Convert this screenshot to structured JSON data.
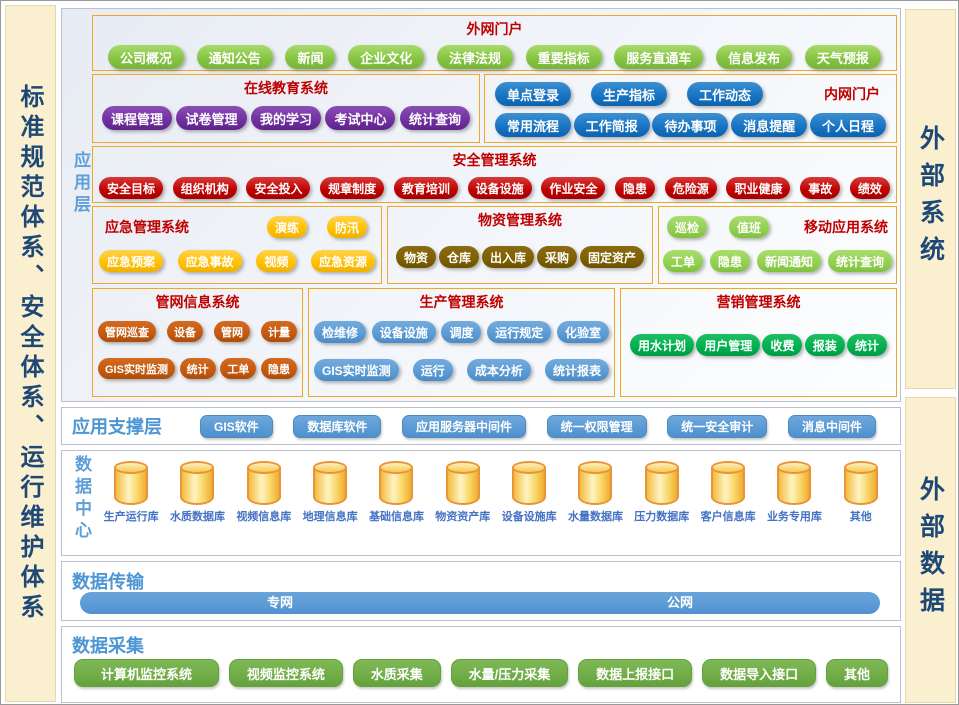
{
  "left_sidebar": {
    "text": "标准规范体系、安全体系、运行维护体系"
  },
  "right_sidebar": {
    "top_text": "外部系统",
    "bottom_text": "外部数据"
  },
  "app_layer": {
    "label": "应用层",
    "external_portal": {
      "title": "外网门户",
      "items": [
        "公司概况",
        "通知公告",
        "新闻",
        "企业文化",
        "法律法规",
        "重要指标",
        "服务直通车",
        "信息发布",
        "天气预报"
      ]
    },
    "online_education": {
      "title": "在线教育系统",
      "items": [
        "课程管理",
        "试卷管理",
        "我的学习",
        "考试中心",
        "统计查询"
      ]
    },
    "intranet_portal": {
      "title": "内网门户",
      "row1": [
        "单点登录",
        "生产指标",
        "工作动态"
      ],
      "row2": [
        "常用流程",
        "工作简报",
        "待办事项",
        "消息提醒",
        "个人日程"
      ]
    },
    "safety_mgmt": {
      "title": "安全管理系统",
      "items": [
        "安全目标",
        "组织机构",
        "安全投入",
        "规章制度",
        "教育培训",
        "设备设施",
        "作业安全",
        "隐患",
        "危险源",
        "职业健康",
        "事故",
        "绩效"
      ]
    },
    "emergency_mgmt": {
      "title": "应急管理系统",
      "row1": [
        "演练",
        "防汛"
      ],
      "row2": [
        "应急预案",
        "应急事故",
        "视频",
        "应急资源"
      ]
    },
    "material_mgmt": {
      "title": "物资管理系统",
      "items": [
        "物资",
        "仓库",
        "出入库",
        "采购",
        "固定资产"
      ]
    },
    "mobile_app": {
      "title": "移动应用系统",
      "row1": [
        "巡检",
        "值班"
      ],
      "row2": [
        "工单",
        "隐患",
        "新闻通知",
        "统计查询"
      ]
    },
    "pipe_network": {
      "title": "管网信息系统",
      "row1": [
        "管网巡查",
        "设备",
        "管网",
        "计量"
      ],
      "row2": [
        "GIS实时监测",
        "统计",
        "工单",
        "隐患"
      ]
    },
    "production_mgmt": {
      "title": "生产管理系统",
      "row1": [
        "检维修",
        "设备设施",
        "调度",
        "运行规定",
        "化验室"
      ],
      "row2": [
        "GIS实时监测",
        "运行",
        "成本分析",
        "统计报表"
      ]
    },
    "marketing_mgmt": {
      "title": "营销管理系统",
      "items": [
        "用水计划",
        "用户管理",
        "收费",
        "报装",
        "统计"
      ]
    }
  },
  "support_layer": {
    "label": "应用支撑层",
    "items": [
      "GIS软件",
      "数据库软件",
      "应用服务器中间件",
      "统一权限管理",
      "统一安全审计",
      "消息中间件"
    ]
  },
  "data_center": {
    "label": "数据中心",
    "databases": [
      "生产运行库",
      "水质数据库",
      "视频信息库",
      "地理信息库",
      "基础信息库",
      "物资资产库",
      "设备设施库",
      "水量数据库",
      "压力数据库",
      "客户信息库",
      "业务专用库",
      "其他"
    ]
  },
  "data_transmission": {
    "label": "数据传输",
    "networks": [
      "专网",
      "公网"
    ]
  },
  "data_collection": {
    "label": "数据采集",
    "items": [
      "计算机监控系统",
      "视频监控系统",
      "水质采集",
      "水量/压力采集",
      "数据上报接口",
      "数据导入接口",
      "其他"
    ]
  },
  "colors": {
    "section_title_red": "#C00000",
    "gold_border": "#EFA824",
    "cream_sidebar": "#FAEFCF",
    "sidebar_text_blue": "#1E4977",
    "layer_label_blue": "#4D96D3",
    "pill_green": "#84C342",
    "pill_purple": "#7030A0",
    "pill_blue": "#1673C2",
    "pill_red": "#C00000",
    "pill_yellow": "#FFC000",
    "pill_olive": "#7F6000",
    "pill_light_green": "#92D050",
    "pill_orange": "#C55A11",
    "pill_light_blue": "#5B9BD5",
    "pill_bright_green": "#00B050",
    "collect_green": "#70AD47",
    "db_label_blue": "#4472C4",
    "cylinder_yellow": "#F9D96B"
  }
}
